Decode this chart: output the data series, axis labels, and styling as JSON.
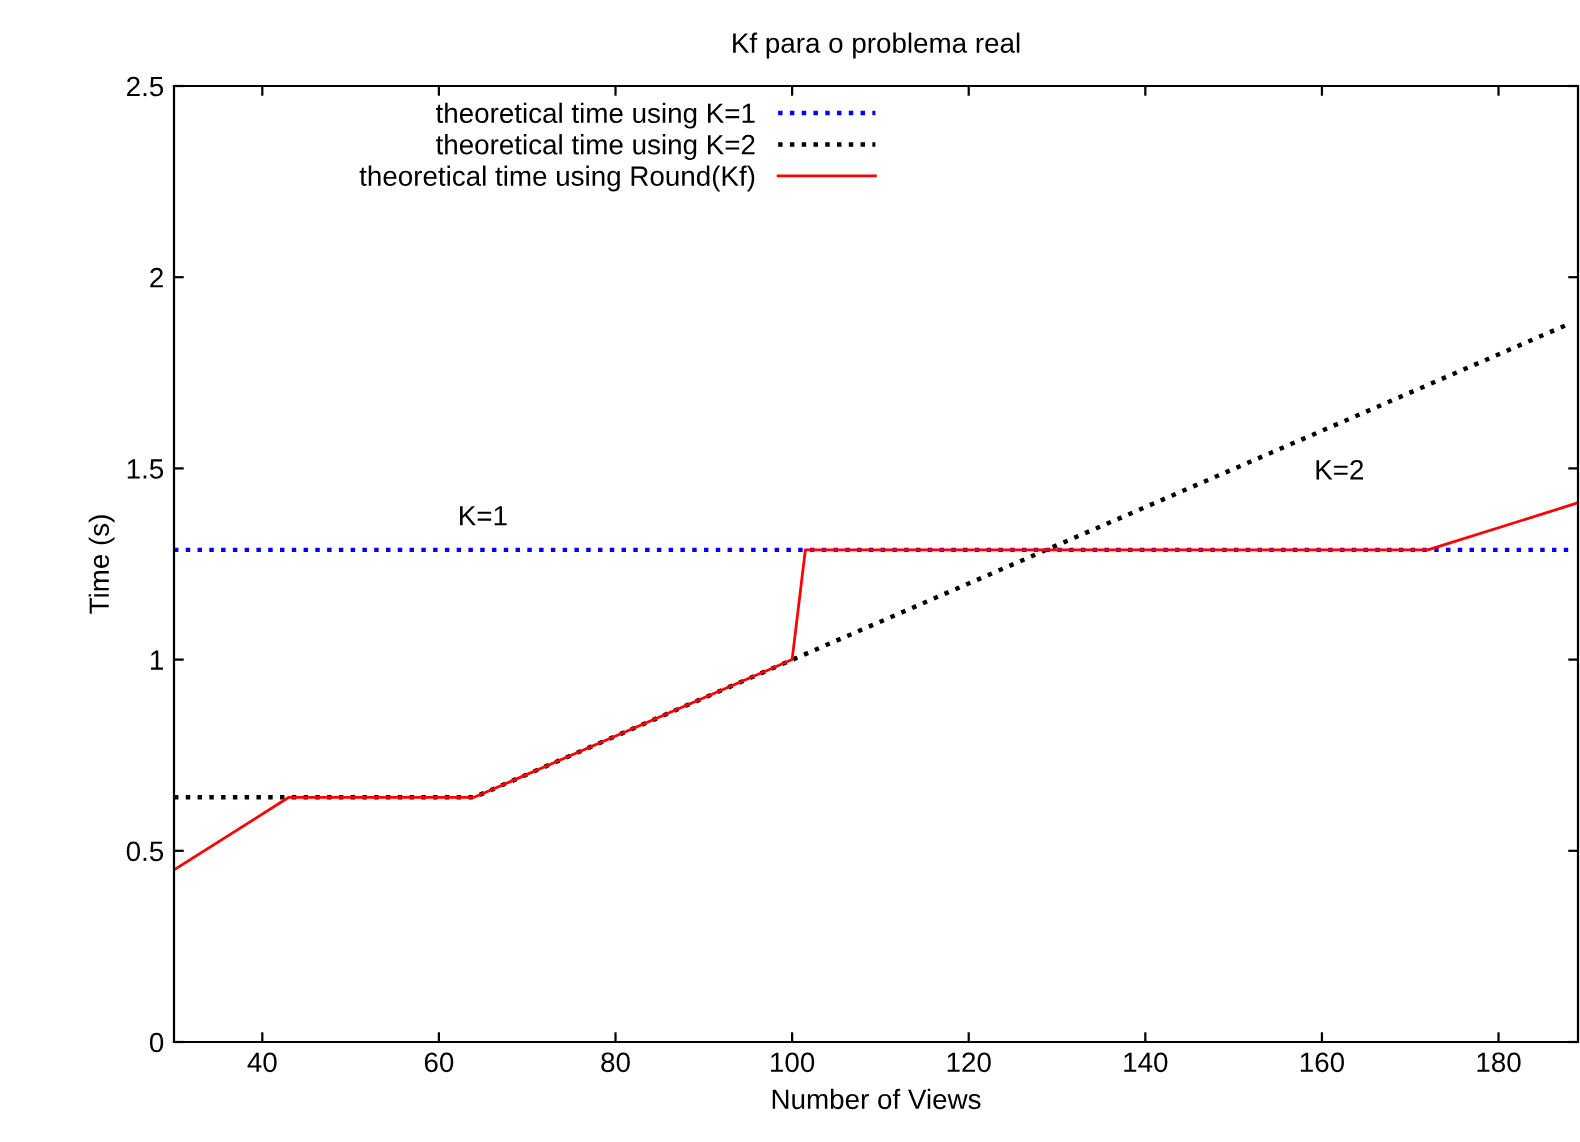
{
  "chart_data": {
    "type": "line",
    "title": "Kf para o problema real",
    "xlabel": "Number of Views",
    "ylabel": "Time (s)",
    "xlim": [
      30,
      189
    ],
    "xticks": [
      40,
      60,
      80,
      100,
      120,
      140,
      160,
      180
    ],
    "ylim": [
      0,
      2.5
    ],
    "yticks": [
      0,
      0.5,
      1,
      1.5,
      2,
      2.5
    ],
    "series": [
      {
        "name": "theoretical time using K=1",
        "color": "#0000ff",
        "line_style": "dotted",
        "x": [
          30,
          188
        ],
        "values": [
          1.287,
          1.287
        ]
      },
      {
        "name": "theoretical time using K=2",
        "color": "#000000",
        "line_style": "dotted",
        "x": [
          30,
          64,
          188
        ],
        "values": [
          0.64,
          0.64,
          1.878
        ]
      },
      {
        "name": "theoretical time using Round(Kf)",
        "color": "#ff0000",
        "line_style": "solid",
        "x": [
          30,
          43,
          64,
          100,
          101.5,
          172,
          189
        ],
        "values": [
          0.45,
          0.64,
          0.64,
          1.0,
          1.287,
          1.287,
          1.41
        ]
      }
    ],
    "annotations": [
      "K=1",
      "K=2"
    ],
    "grid": false,
    "legend": "top left",
    "marker": "none"
  }
}
